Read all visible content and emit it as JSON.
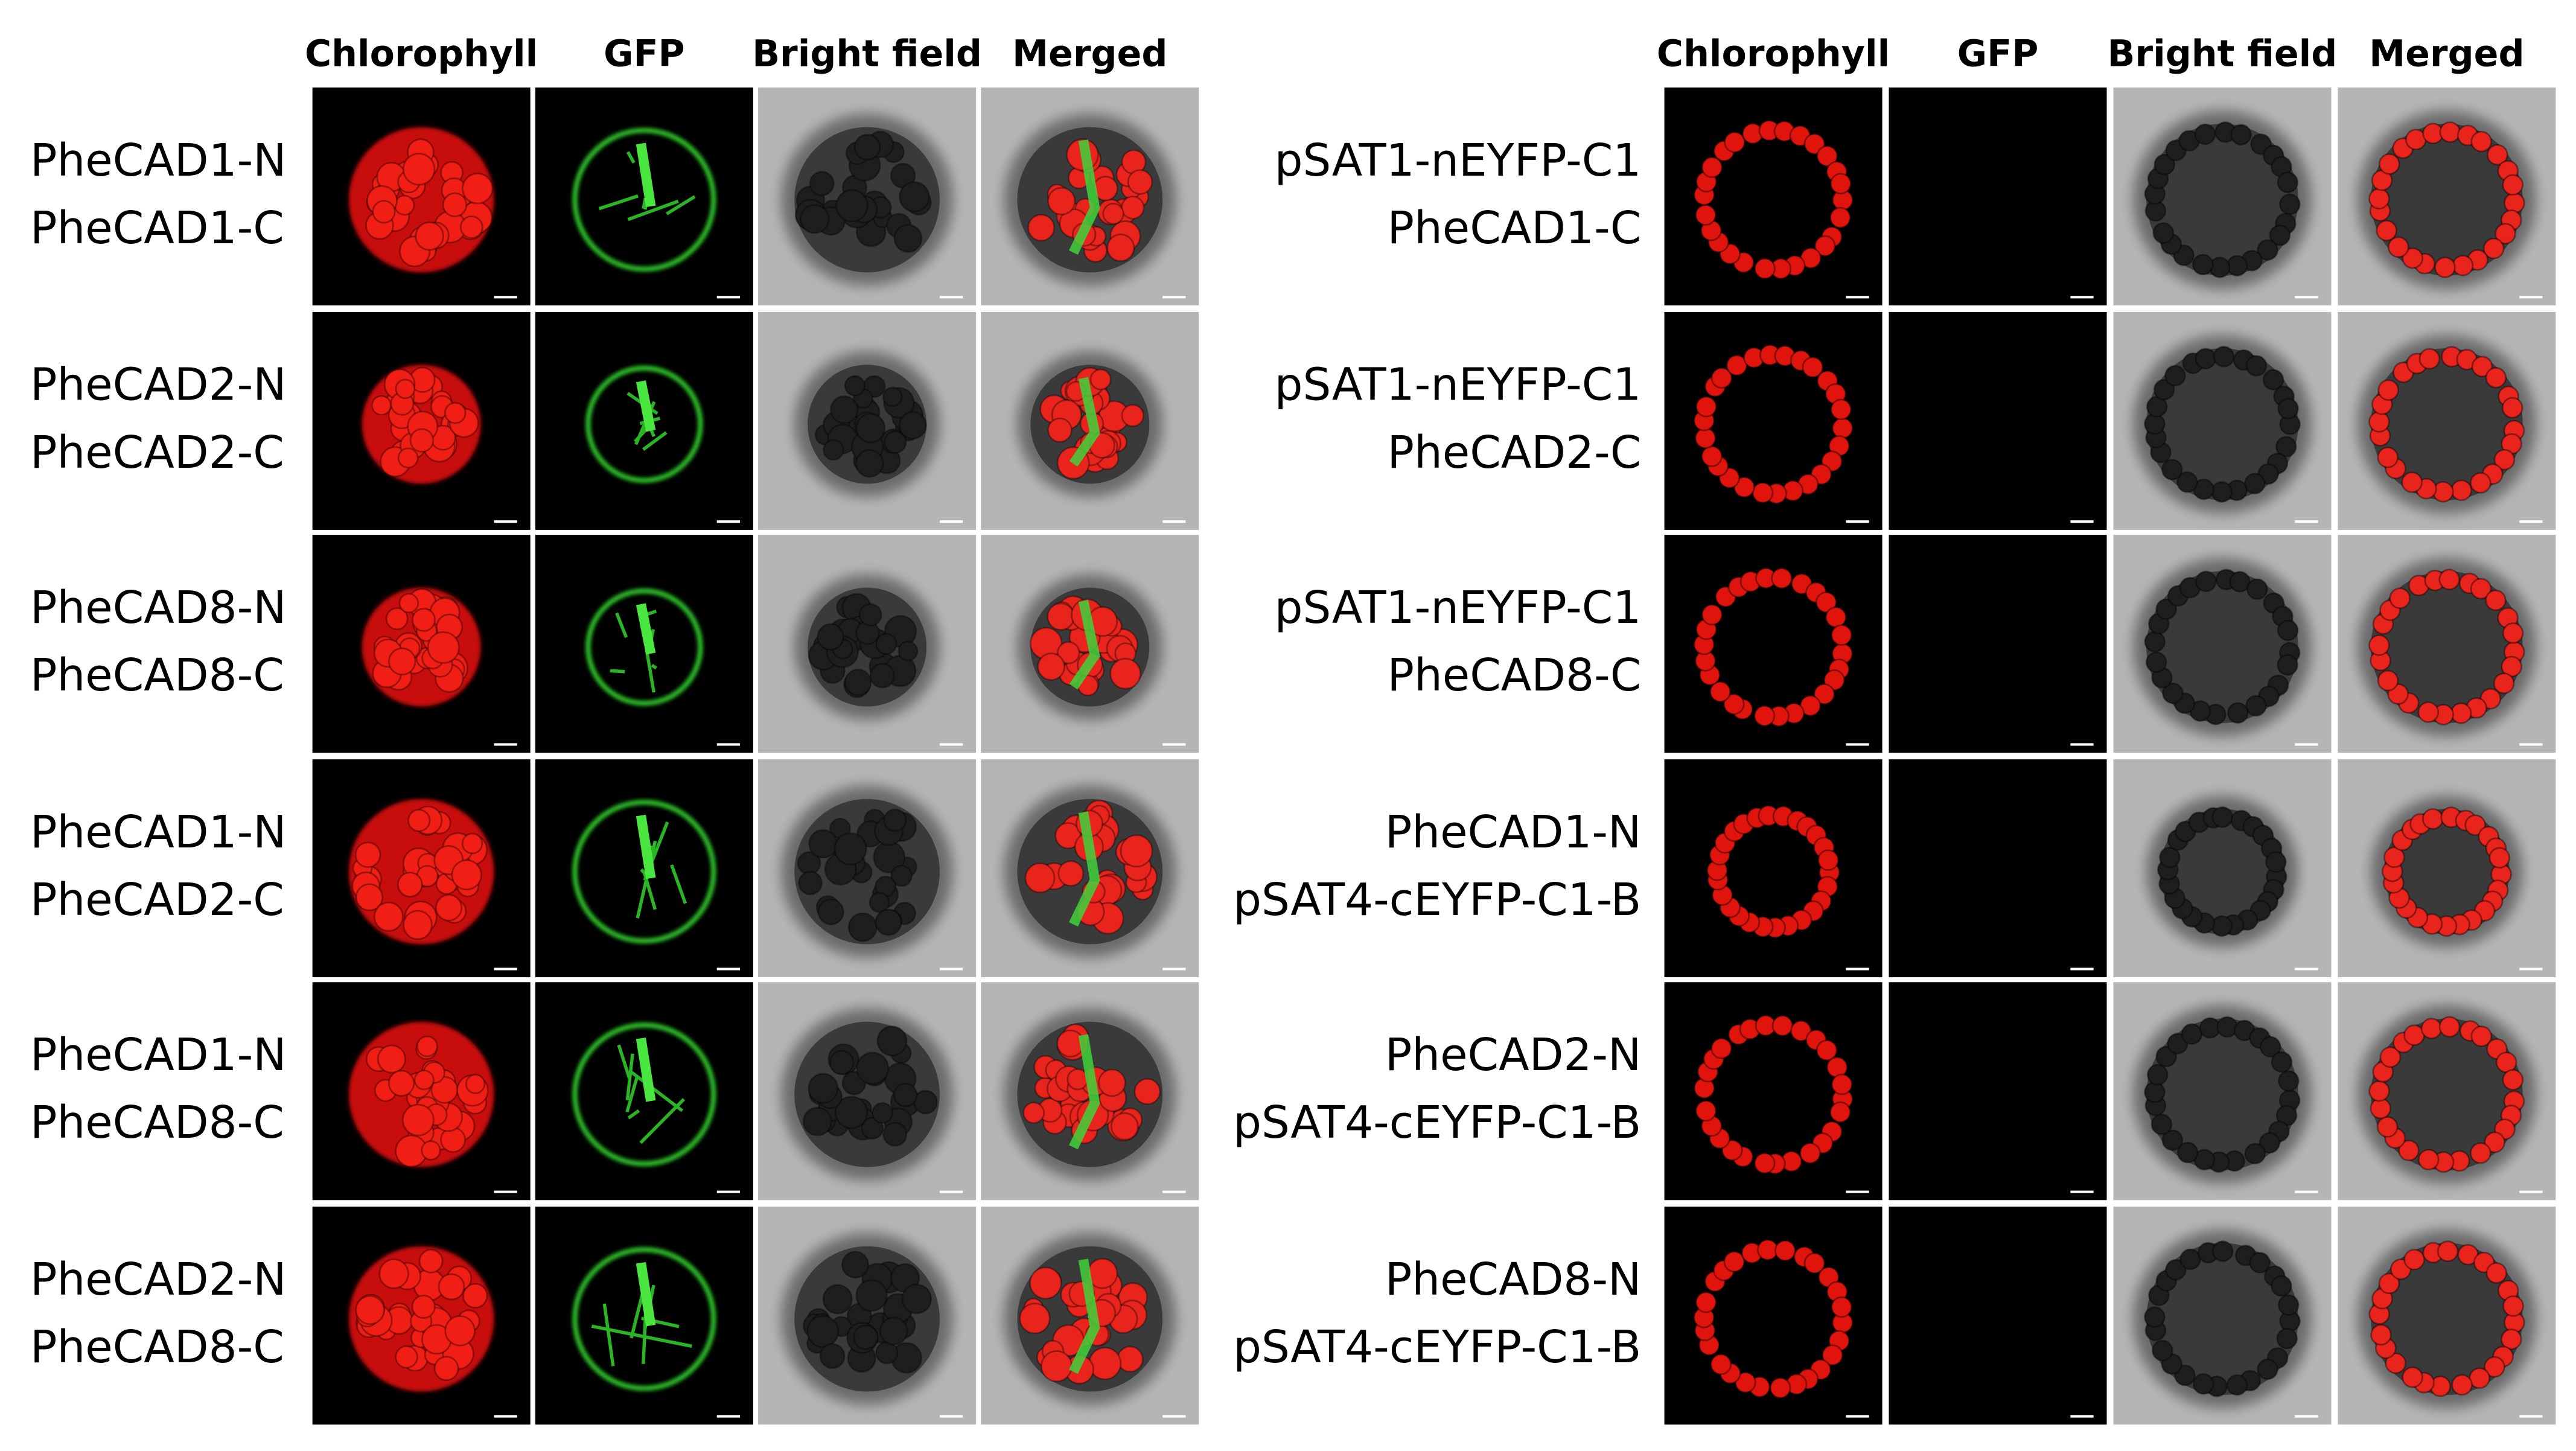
{
  "left": {
    "columns": [
      "Chlorophyll",
      "GFP",
      "Bright field",
      "Merged"
    ],
    "rows": [
      [
        "PheCAD1-N",
        "PheCAD1-C"
      ],
      [
        "PheCAD2-N",
        "PheCAD2-C"
      ],
      [
        "PheCAD8-N",
        "PheCAD8-C"
      ],
      [
        "PheCAD1-N",
        "PheCAD2-C"
      ],
      [
        "PheCAD1-N",
        "PheCAD8-C"
      ],
      [
        "PheCAD2-N",
        "PheCAD8-C"
      ]
    ]
  },
  "right": {
    "columns": [
      "Chlorophyll",
      "GFP",
      "Bright field",
      "Merged"
    ],
    "rows": [
      [
        "pSAT1-nEYFP-C1",
        "PheCAD1-C"
      ],
      [
        "pSAT1-nEYFP-C1",
        "PheCAD2-C"
      ],
      [
        "pSAT1-nEYFP-C1",
        "PheCAD8-C"
      ],
      [
        "PheCAD1-N",
        "pSAT4-cEYFP-C1-B"
      ],
      [
        "PheCAD2-N",
        "pSAT4-cEYFP-C1-B"
      ],
      [
        "PheCAD8-N",
        "pSAT4-cEYFP-C1-B"
      ]
    ]
  }
}
